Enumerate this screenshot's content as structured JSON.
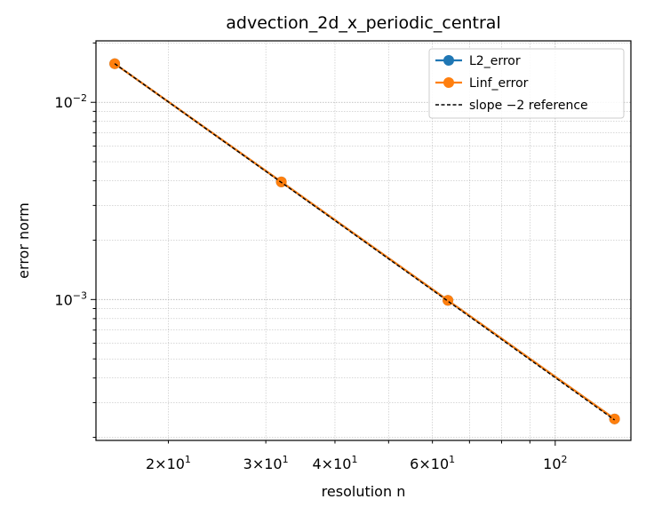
{
  "chart_data": {
    "type": "line",
    "title": "advection_2d_x_periodic_central",
    "xlabel": "resolution n",
    "ylabel": "error norm",
    "xscale": "log",
    "yscale": "log",
    "xlim": [
      14.8,
      137
    ],
    "ylim": [
      0.000193,
      0.0205
    ],
    "grid": true,
    "legend_position": "top-right",
    "x_tick_labels": [
      {
        "value": 20,
        "mantissa": "2",
        "exponent": "1"
      },
      {
        "value": 30,
        "mantissa": "3",
        "exponent": "1"
      },
      {
        "value": 40,
        "mantissa": "4",
        "exponent": "1"
      },
      {
        "value": 60,
        "mantissa": "6",
        "exponent": "1"
      },
      {
        "value": 100,
        "mantissa": "",
        "exponent": "2"
      }
    ],
    "y_tick_labels": [
      {
        "value": 0.01,
        "exponent": "−2"
      },
      {
        "value": 0.001,
        "exponent": "−3"
      }
    ],
    "series": [
      {
        "name": "L2_error",
        "color": "#1f77b4",
        "style": "solid-marker",
        "x": [
          16,
          32,
          64,
          128
        ],
        "y": [
          0.0157,
          0.00395,
          0.00099,
          0.000248
        ]
      },
      {
        "name": "Linf_error",
        "color": "#ff7f0e",
        "style": "solid-marker",
        "x": [
          16,
          32,
          64,
          128
        ],
        "y": [
          0.0157,
          0.00395,
          0.00099,
          0.000248
        ]
      },
      {
        "name": "slope −2 reference",
        "color": "#000000",
        "style": "dashed",
        "x": [
          16,
          32,
          64,
          128
        ],
        "y": [
          0.0157,
          0.003925,
          0.000981,
          0.000245
        ]
      }
    ]
  }
}
